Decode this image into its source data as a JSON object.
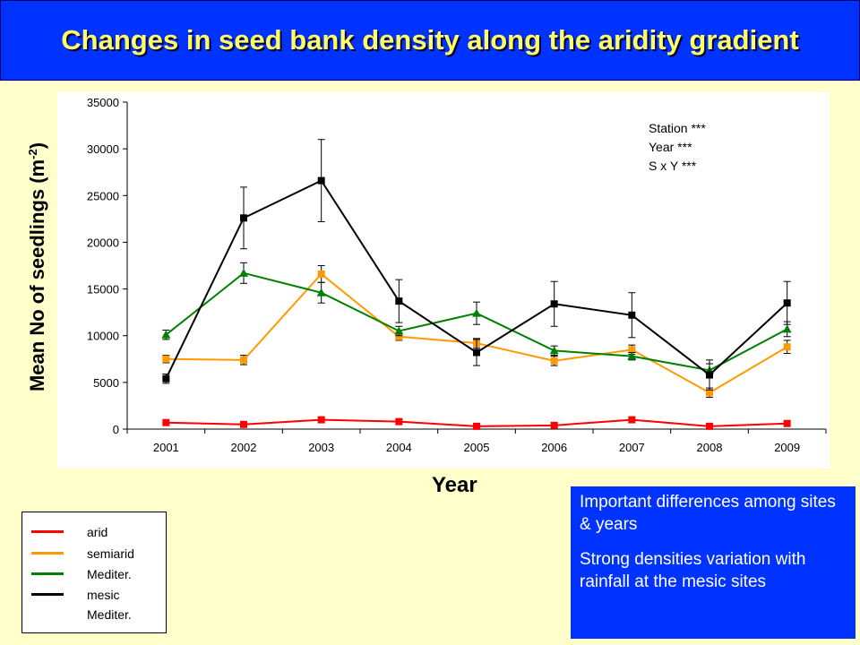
{
  "title": "Changes in seed bank density along the aridity gradient",
  "chart_data": {
    "type": "line",
    "xlabel": "Year",
    "ylabel_text": "Mean No of seedlings (m",
    "ylabel_sup": "-2",
    "ylabel_close": ")",
    "categories": [
      "2001",
      "2002",
      "2003",
      "2004",
      "2005",
      "2006",
      "2007",
      "2008",
      "2009"
    ],
    "ylim": [
      0,
      35000
    ],
    "yticks": [
      "0",
      "5000",
      "10000",
      "15000",
      "20000",
      "25000",
      "30000",
      "35000"
    ],
    "grid": false,
    "series": [
      {
        "name": "arid",
        "color": "#ff0000",
        "marker": "square",
        "values": [
          700,
          500,
          1000,
          800,
          300,
          400,
          1000,
          300,
          600
        ],
        "errors": [
          0,
          0,
          0,
          0,
          0,
          0,
          0,
          0,
          0
        ]
      },
      {
        "name": "semiarid",
        "color": "#ff9900",
        "marker": "square",
        "values": [
          7500,
          7400,
          16600,
          9900,
          9200,
          7300,
          8500,
          3900,
          8800
        ],
        "errors": [
          400,
          500,
          900,
          400,
          500,
          500,
          500,
          500,
          700
        ]
      },
      {
        "name": "Mediter.",
        "color": "#008000",
        "marker": "triangle",
        "values": [
          10100,
          16700,
          14600,
          10500,
          12400,
          8400,
          7800,
          6300,
          10700
        ],
        "errors": [
          500,
          1100,
          1100,
          500,
          1200,
          500,
          400,
          700,
          800
        ]
      },
      {
        "name": "mesic Mediter.",
        "color": "#000000",
        "marker": "square",
        "values": [
          5400,
          22600,
          26600,
          13700,
          8200,
          13400,
          12200,
          5800,
          13500
        ],
        "errors": [
          500,
          3300,
          4400,
          2300,
          1400,
          2400,
          2400,
          1600,
          2300
        ]
      }
    ],
    "annotations": [
      "Station ***",
      "Year ***",
      "S x Y ***"
    ]
  },
  "legend": {
    "items": [
      {
        "lines": [
          "arid"
        ],
        "color": "#ff0000"
      },
      {
        "lines": [
          "semiarid"
        ],
        "color": "#ff9900"
      },
      {
        "lines": [
          "Mediter."
        ],
        "color": "#008000"
      },
      {
        "lines": [
          "mesic",
          "Mediter."
        ],
        "color": "#000000"
      }
    ]
  },
  "note": {
    "line1": "Important differences among sites & years",
    "line2": "Strong densities variation with rainfall at the mesic sites"
  },
  "colors": {
    "background": "#ffffcc",
    "title_bar": "#0033ff",
    "title_text": "#ffff66",
    "plot_area": "#ffffff",
    "note_box": "#0033ff"
  }
}
